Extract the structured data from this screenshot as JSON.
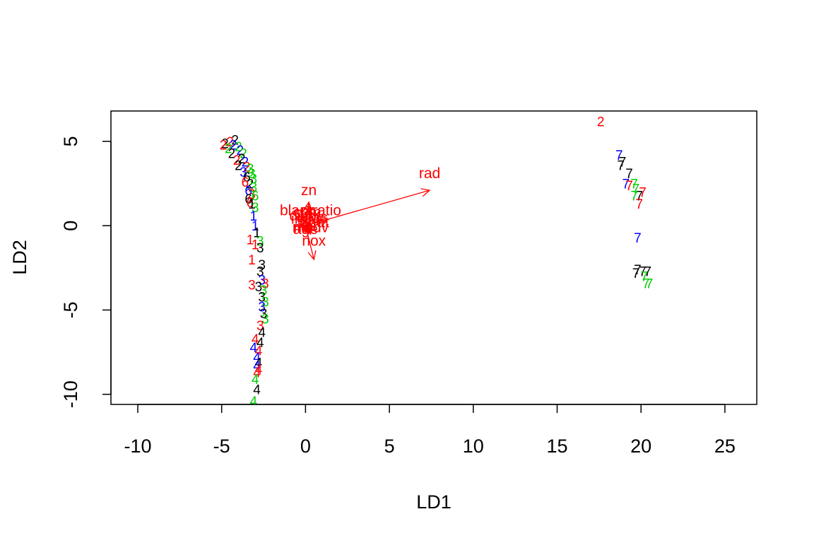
{
  "chart_data": {
    "type": "scatter",
    "title": "",
    "xlabel": "LD1",
    "ylabel": "LD2",
    "xlim": [
      -11.6,
      26.9
    ],
    "ylim": [
      -10.6,
      6.8
    ],
    "x_ticks": [
      -10,
      -5,
      0,
      5,
      10,
      15,
      20,
      25
    ],
    "x_tick_labels": [
      "-10",
      "-5",
      "0",
      "5",
      "10",
      "15",
      "20",
      "25"
    ],
    "y_ticks": [
      -10,
      -5,
      0,
      5
    ],
    "y_tick_labels": [
      "-10",
      "-5",
      "0",
      "5"
    ],
    "grid": false,
    "legend": "none",
    "colors": {
      "black": "#000000",
      "red": "#ff0000",
      "green": "#00cd00",
      "blue": "#0000ff",
      "arrow": "#ff0000",
      "axis": "#000000"
    },
    "points": [
      {
        "x": -4.8,
        "y": 4.9,
        "label": "2",
        "color": "black"
      },
      {
        "x": -4.5,
        "y": 5.0,
        "label": "2",
        "color": "red"
      },
      {
        "x": -4.2,
        "y": 5.1,
        "label": "2",
        "color": "black"
      },
      {
        "x": -4.9,
        "y": 4.8,
        "label": "2",
        "color": "red"
      },
      {
        "x": -4.6,
        "y": 4.6,
        "label": "2",
        "color": "green"
      },
      {
        "x": -4.3,
        "y": 4.8,
        "label": "2",
        "color": "blue"
      },
      {
        "x": -4.0,
        "y": 4.7,
        "label": "2",
        "color": "green"
      },
      {
        "x": -3.9,
        "y": 4.5,
        "label": "2",
        "color": "blue"
      },
      {
        "x": -4.4,
        "y": 4.3,
        "label": "2",
        "color": "black"
      },
      {
        "x": -3.7,
        "y": 4.3,
        "label": "2",
        "color": "green"
      },
      {
        "x": -4.1,
        "y": 3.9,
        "label": "2",
        "color": "red"
      },
      {
        "x": -3.8,
        "y": 4.0,
        "label": "2",
        "color": "black"
      },
      {
        "x": -3.6,
        "y": 3.8,
        "label": "2",
        "color": "blue"
      },
      {
        "x": -4.0,
        "y": 3.6,
        "label": "2",
        "color": "black"
      },
      {
        "x": -3.5,
        "y": 3.5,
        "label": "2",
        "color": "red"
      },
      {
        "x": -3.3,
        "y": 3.4,
        "label": "3",
        "color": "green"
      },
      {
        "x": -3.7,
        "y": 3.2,
        "label": "3",
        "color": "blue"
      },
      {
        "x": -3.2,
        "y": 3.1,
        "label": "3",
        "color": "green"
      },
      {
        "x": -3.5,
        "y": 2.9,
        "label": "6",
        "color": "black"
      },
      {
        "x": -3.1,
        "y": 2.8,
        "label": "3",
        "color": "green"
      },
      {
        "x": -3.6,
        "y": 2.6,
        "label": "6",
        "color": "red"
      },
      {
        "x": -3.3,
        "y": 2.5,
        "label": "2",
        "color": "black"
      },
      {
        "x": -3.1,
        "y": 2.3,
        "label": "3",
        "color": "green"
      },
      {
        "x": -3.4,
        "y": 2.1,
        "label": "6",
        "color": "blue"
      },
      {
        "x": -3.2,
        "y": 1.9,
        "label": "3",
        "color": "red"
      },
      {
        "x": -3.0,
        "y": 1.8,
        "label": "6",
        "color": "green"
      },
      {
        "x": -3.4,
        "y": 1.6,
        "label": "6",
        "color": "black"
      },
      {
        "x": -3.3,
        "y": 1.4,
        "label": "6",
        "color": "red"
      },
      {
        "x": -3.2,
        "y": 1.3,
        "label": "1",
        "color": "black"
      },
      {
        "x": -3.0,
        "y": 1.1,
        "label": "3",
        "color": "green"
      },
      {
        "x": -3.1,
        "y": 0.6,
        "label": "1",
        "color": "blue"
      },
      {
        "x": -3.0,
        "y": 0.0,
        "label": "1",
        "color": "blue"
      },
      {
        "x": -2.9,
        "y": -0.4,
        "label": "1",
        "color": "black"
      },
      {
        "x": -2.7,
        "y": -0.9,
        "label": "3",
        "color": "green"
      },
      {
        "x": -3.3,
        "y": -0.8,
        "label": "1",
        "color": "red"
      },
      {
        "x": -3.0,
        "y": -1.1,
        "label": "1",
        "color": "red"
      },
      {
        "x": -2.7,
        "y": -1.3,
        "label": "3",
        "color": "black"
      },
      {
        "x": -3.2,
        "y": -2.0,
        "label": "1",
        "color": "red"
      },
      {
        "x": -2.6,
        "y": -2.3,
        "label": "3",
        "color": "black"
      },
      {
        "x": -2.7,
        "y": -2.7,
        "label": "3",
        "color": "black"
      },
      {
        "x": -2.6,
        "y": -3.2,
        "label": "3",
        "color": "blue"
      },
      {
        "x": -3.2,
        "y": -3.5,
        "label": "3",
        "color": "red"
      },
      {
        "x": -2.4,
        "y": -3.4,
        "label": "3",
        "color": "red"
      },
      {
        "x": -2.8,
        "y": -3.6,
        "label": "3",
        "color": "black"
      },
      {
        "x": -2.5,
        "y": -3.8,
        "label": "3",
        "color": "green"
      },
      {
        "x": -2.6,
        "y": -4.2,
        "label": "3",
        "color": "black"
      },
      {
        "x": -2.4,
        "y": -4.5,
        "label": "3",
        "color": "green"
      },
      {
        "x": -2.6,
        "y": -4.8,
        "label": "3",
        "color": "blue"
      },
      {
        "x": -2.5,
        "y": -5.2,
        "label": "3",
        "color": "black"
      },
      {
        "x": -2.4,
        "y": -5.5,
        "label": "3",
        "color": "green"
      },
      {
        "x": -2.7,
        "y": -5.9,
        "label": "3",
        "color": "red"
      },
      {
        "x": -2.6,
        "y": -6.3,
        "label": "4",
        "color": "black"
      },
      {
        "x": -3.0,
        "y": -6.7,
        "label": "4",
        "color": "red"
      },
      {
        "x": -2.7,
        "y": -6.9,
        "label": "4",
        "color": "black"
      },
      {
        "x": -3.1,
        "y": -7.2,
        "label": "4",
        "color": "blue"
      },
      {
        "x": -2.8,
        "y": -7.4,
        "label": "4",
        "color": "red"
      },
      {
        "x": -2.9,
        "y": -7.8,
        "label": "4",
        "color": "blue"
      },
      {
        "x": -2.8,
        "y": -8.1,
        "label": "4",
        "color": "black"
      },
      {
        "x": -2.9,
        "y": -8.3,
        "label": "4",
        "color": "blue"
      },
      {
        "x": -2.8,
        "y": -8.5,
        "label": "4",
        "color": "red"
      },
      {
        "x": -2.9,
        "y": -8.7,
        "label": "4",
        "color": "red"
      },
      {
        "x": -3.0,
        "y": -9.1,
        "label": "4",
        "color": "green"
      },
      {
        "x": -2.9,
        "y": -9.7,
        "label": "4",
        "color": "black"
      },
      {
        "x": -3.1,
        "y": -10.4,
        "label": "4",
        "color": "green"
      },
      {
        "x": 17.6,
        "y": 6.2,
        "label": "2",
        "color": "red"
      },
      {
        "x": 18.7,
        "y": 4.2,
        "label": "7",
        "color": "blue"
      },
      {
        "x": 18.9,
        "y": 3.8,
        "label": "7",
        "color": "black"
      },
      {
        "x": 18.8,
        "y": 3.6,
        "label": "7",
        "color": "black"
      },
      {
        "x": 19.3,
        "y": 3.1,
        "label": "7",
        "color": "black"
      },
      {
        "x": 19.1,
        "y": 2.5,
        "label": "7",
        "color": "blue"
      },
      {
        "x": 19.3,
        "y": 2.4,
        "label": "7",
        "color": "red"
      },
      {
        "x": 19.6,
        "y": 2.5,
        "label": "7",
        "color": "green"
      },
      {
        "x": 19.7,
        "y": 2.2,
        "label": "7",
        "color": "green"
      },
      {
        "x": 20.1,
        "y": 2.0,
        "label": "7",
        "color": "red"
      },
      {
        "x": 19.9,
        "y": 1.8,
        "label": "7",
        "color": "black"
      },
      {
        "x": 19.6,
        "y": 1.8,
        "label": "7",
        "color": "green"
      },
      {
        "x": 19.9,
        "y": 1.3,
        "label": "7",
        "color": "red"
      },
      {
        "x": 19.8,
        "y": -0.7,
        "label": "7",
        "color": "blue"
      },
      {
        "x": 19.8,
        "y": -2.6,
        "label": "7",
        "color": "black"
      },
      {
        "x": 20.1,
        "y": -2.7,
        "label": "7",
        "color": "black"
      },
      {
        "x": 20.4,
        "y": -2.7,
        "label": "7",
        "color": "black"
      },
      {
        "x": 19.7,
        "y": -2.8,
        "label": "7",
        "color": "black"
      },
      {
        "x": 20.2,
        "y": -3.0,
        "label": "7",
        "color": "green"
      },
      {
        "x": 20.3,
        "y": -3.4,
        "label": "7",
        "color": "green"
      },
      {
        "x": 20.5,
        "y": -3.4,
        "label": "7",
        "color": "green"
      }
    ],
    "arrows": [
      {
        "label": "rad",
        "x": 7.4,
        "y": 2.1,
        "label_x": 7.4,
        "label_y": 3.1
      },
      {
        "label": "zn",
        "x": 0.2,
        "y": 1.4,
        "label_x": 0.2,
        "label_y": 2.1
      },
      {
        "label": "nox",
        "x": 0.5,
        "y": -2.0,
        "label_x": 0.5,
        "label_y": -0.9
      },
      {
        "label": "ptratio",
        "x": 0.9,
        "y": 0.3,
        "label_x": 0.9,
        "label_y": 0.9
      },
      {
        "label": "black",
        "x": -0.5,
        "y": 0.4,
        "label_x": -0.5,
        "label_y": 0.9
      },
      {
        "label": "tax",
        "x": 0.3,
        "y": 0.2,
        "label_x": 0.3,
        "label_y": 0.7
      },
      {
        "label": "dis",
        "x": -0.4,
        "y": 0.1,
        "label_x": -0.4,
        "label_y": 0.6
      },
      {
        "label": "crim",
        "x": 0.1,
        "y": 0.3,
        "label_x": 0.1,
        "label_y": 0.8
      },
      {
        "label": "indus",
        "x": 0.2,
        "y": -0.1,
        "label_x": 0.2,
        "label_y": 0.4
      },
      {
        "label": "chas",
        "x": 0.4,
        "y": 0.0,
        "label_x": 0.4,
        "label_y": 0.5
      },
      {
        "label": "lstat",
        "x": 0.6,
        "y": -0.3,
        "label_x": 0.6,
        "label_y": 0.2
      },
      {
        "label": "rm",
        "x": -0.2,
        "y": -0.2,
        "label_x": -0.2,
        "label_y": -0.1
      },
      {
        "label": "age",
        "x": 0.0,
        "y": -0.4,
        "label_x": 0.0,
        "label_y": -0.2
      },
      {
        "label": "medv",
        "x": 0.3,
        "y": -0.5,
        "label_x": 0.3,
        "label_y": -0.1
      }
    ]
  }
}
